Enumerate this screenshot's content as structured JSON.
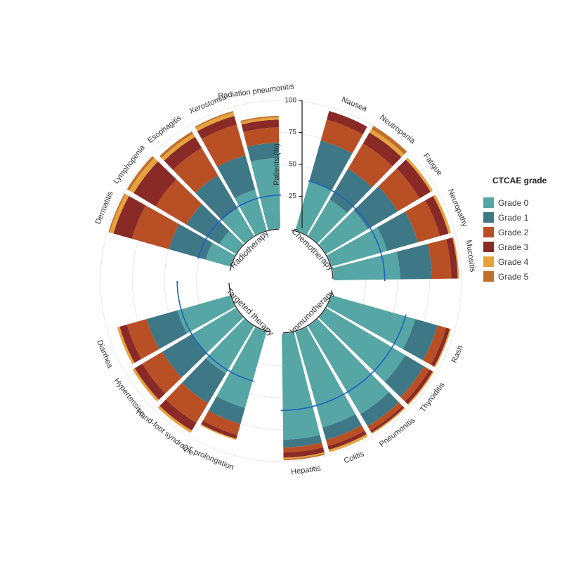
{
  "chart_data": {
    "type": "stacked-circular-bar",
    "legend": {
      "title": "CTCAE grade",
      "entries": [
        {
          "label": "Grade 0",
          "color": "#56a6a5"
        },
        {
          "label": "Grade 1",
          "color": "#3e7886"
        },
        {
          "label": "Grade 2",
          "color": "#b94f25"
        },
        {
          "label": "Grade 3",
          "color": "#8a2a27"
        },
        {
          "label": "Grade 4",
          "color": "#e6a23c"
        },
        {
          "label": "Grade 5",
          "color": "#c06e2a"
        }
      ],
      "position": "right"
    },
    "radial_axis": {
      "title": "Patients (%)",
      "ticks": [
        "25",
        "50",
        "75",
        "100"
      ],
      "range": [
        0,
        100
      ]
    },
    "grid": true,
    "groups": [
      {
        "name": "Chemotherapy",
        "mean": 40,
        "categories": [
          {
            "name": "Nausea",
            "grades": [
              40,
              33,
              17,
              7,
              0,
              0
            ]
          },
          {
            "name": "Neutropenia",
            "grades": [
              33,
              28,
              23,
              10,
              3,
              3
            ]
          },
          {
            "name": "Fatigue",
            "grades": [
              38,
              27,
              20,
              10,
              2,
              0
            ]
          },
          {
            "name": "Neuropathy",
            "grades": [
              45,
              25,
              18,
              7,
              2,
              0
            ]
          },
          {
            "name": "Mucositis",
            "grades": [
              52,
              25,
              15,
              5,
              1,
              0
            ]
          }
        ]
      },
      {
        "name": "Immunotherapy",
        "mean": 60,
        "categories": [
          {
            "name": "Rash",
            "grades": [
              68,
              18,
              7,
              3,
              1,
              0
            ]
          },
          {
            "name": "Thyroiditis",
            "grades": [
              72,
              17,
              5,
              3,
              1,
              0
            ]
          },
          {
            "name": "Pneumonitis",
            "grades": [
              80,
              11,
              4,
              2,
              1,
              0
            ]
          },
          {
            "name": "Colitis",
            "grades": [
              78,
              10,
              5,
              3,
              2,
              0
            ]
          },
          {
            "name": "Hepatitis",
            "grades": [
              83,
              6,
              4,
              4,
              1,
              1
            ]
          }
        ]
      },
      {
        "name": "Targeted therapy",
        "mean": 40,
        "categories": [
          {
            "name": "QT prolongation",
            "grades": [
              62,
              13,
              9,
              3,
              1,
              0
            ]
          },
          {
            "name": "Hand-foot syndrome",
            "grades": [
              43,
              27,
              18,
              7,
              2,
              0
            ]
          },
          {
            "name": "Hypertension",
            "grades": [
              40,
              27,
              18,
              7,
              2,
              0
            ]
          },
          {
            "name": "Diarrhea",
            "grades": [
              43,
              25,
              16,
              6,
              2,
              0
            ]
          },
          {
            "name": "",
            "grades": [
              0,
              0,
              0,
              0,
              0,
              0
            ]
          }
        ]
      },
      {
        "name": "Radiotherapy",
        "mean": 26,
        "categories": [
          {
            "name": "Dermatitis",
            "grades": [
              20,
              30,
              30,
              15,
              3,
              1
            ]
          },
          {
            "name": "Lymphopenia",
            "grades": [
              15,
              30,
              28,
              20,
              4,
              2
            ]
          },
          {
            "name": "Esophagitis",
            "grades": [
              25,
              30,
              25,
              10,
              3,
              2
            ]
          },
          {
            "name": "Xerostomia",
            "grades": [
              33,
              28,
              25,
              7,
              3,
              1
            ]
          },
          {
            "name": "Radiation pneumonitis",
            "grades": [
              55,
              12,
              12,
              6,
              2,
              1
            ]
          }
        ]
      }
    ]
  }
}
